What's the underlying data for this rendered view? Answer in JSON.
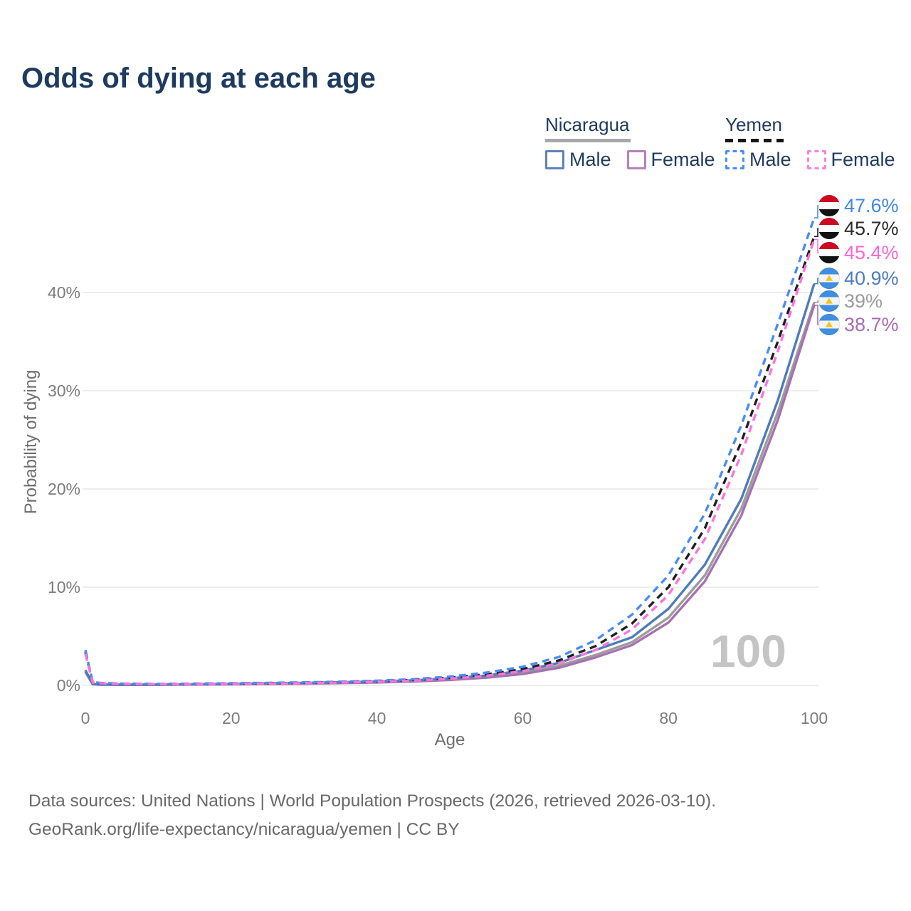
{
  "title": "Odds of dying at each age",
  "watermark": "100",
  "legend": {
    "nicaragua": {
      "name": "Nicaragua",
      "male_label": "Male",
      "female_label": "Female"
    },
    "yemen": {
      "name": "Yemen",
      "male_label": "Male",
      "female_label": "Female"
    }
  },
  "axes": {
    "x": {
      "label": "Age",
      "ticks": [
        {
          "v": 0,
          "label": "0"
        },
        {
          "v": 20,
          "label": "20"
        },
        {
          "v": 40,
          "label": "40"
        },
        {
          "v": 60,
          "label": "60"
        },
        {
          "v": 80,
          "label": "80"
        },
        {
          "v": 100,
          "label": "100"
        }
      ]
    },
    "y": {
      "label": "Probability of dying",
      "ticks": [
        {
          "v": 0,
          "label": "0%"
        },
        {
          "v": 10,
          "label": "10%"
        },
        {
          "v": 20,
          "label": "20%"
        },
        {
          "v": 30,
          "label": "30%"
        },
        {
          "v": 40,
          "label": "40%"
        }
      ]
    }
  },
  "source": {
    "line1": "Data sources: United Nations | World Population Prospects (2026, retrieved 2026-03-10).",
    "line2": "GeoRank.org/life-expectancy/nicaragua/yemen | CC BY"
  },
  "colors": {
    "title_navy": "#1d3a5f",
    "nicaragua_underline": "#a8a8a8",
    "yemen_underline": "#161616",
    "gridline": "#e7e7e7",
    "watermark_gray": "#c4c4c4"
  },
  "chart_data": {
    "type": "line",
    "title": "Odds of dying at each age",
    "xlabel": "Age",
    "ylabel": "Probability of dying",
    "xlim": [
      0,
      100
    ],
    "ylim_percent": [
      0,
      48
    ],
    "grid": "horizontal",
    "legend_position": "top-right",
    "x": [
      0,
      1,
      2,
      5,
      10,
      15,
      20,
      25,
      30,
      35,
      40,
      45,
      50,
      55,
      60,
      65,
      70,
      75,
      80,
      85,
      90,
      95,
      100
    ],
    "series": [
      {
        "id": "yemen-male",
        "name": "Yemen Male",
        "country": "Yemen",
        "sex": "Male",
        "style": "dashed",
        "color": "#4a8cf2",
        "end_label": "47.6%",
        "end_label_color": "#3e86f0",
        "flag": "yemen",
        "values": [
          3.6,
          0.35,
          0.25,
          0.18,
          0.15,
          0.18,
          0.22,
          0.26,
          0.31,
          0.38,
          0.48,
          0.63,
          0.9,
          1.3,
          1.9,
          2.9,
          4.6,
          7.2,
          11.2,
          17.5,
          26.5,
          36.8,
          47.6
        ]
      },
      {
        "id": "yemen-total",
        "name": "Yemen Both sexes",
        "country": "Yemen",
        "sex": "Both",
        "style": "dashed",
        "color": "#1f1f1f",
        "end_label": "45.7%",
        "end_label_color": "#2b2b2b",
        "flag": "yemen",
        "values": [
          3.4,
          0.32,
          0.23,
          0.16,
          0.13,
          0.15,
          0.18,
          0.22,
          0.27,
          0.33,
          0.42,
          0.55,
          0.78,
          1.12,
          1.65,
          2.55,
          4.0,
          6.3,
          10.0,
          16.0,
          24.8,
          35.0,
          45.7
        ]
      },
      {
        "id": "yemen-female",
        "name": "Yemen Female",
        "country": "Yemen",
        "sex": "Female",
        "style": "dashed",
        "color": "#fb74dc",
        "end_label": "45.4%",
        "end_label_color": "#f966d2",
        "flag": "yemen",
        "values": [
          3.2,
          0.3,
          0.21,
          0.15,
          0.12,
          0.13,
          0.15,
          0.18,
          0.23,
          0.29,
          0.37,
          0.48,
          0.68,
          0.98,
          1.45,
          2.25,
          3.6,
          5.7,
          9.2,
          14.9,
          23.5,
          34.0,
          45.4
        ]
      },
      {
        "id": "nicaragua-male",
        "name": "Nicaragua Male",
        "country": "Nicaragua",
        "sex": "Male",
        "style": "solid",
        "color": "#4e7cb8",
        "end_label": "40.9%",
        "end_label_color": "#4d7cbe",
        "flag": "nicaragua",
        "values": [
          1.55,
          0.14,
          0.09,
          0.07,
          0.08,
          0.12,
          0.17,
          0.21,
          0.26,
          0.32,
          0.4,
          0.52,
          0.72,
          1.0,
          1.5,
          2.3,
          3.6,
          4.9,
          7.8,
          12.3,
          19.0,
          29.0,
          40.9
        ]
      },
      {
        "id": "nicaragua-total",
        "name": "Nicaragua Both sexes",
        "country": "Nicaragua",
        "sex": "Both",
        "style": "solid",
        "color": "#9c9c9c",
        "end_label": "39%",
        "end_label_color": "#9b9b9b",
        "flag": "nicaragua",
        "values": [
          1.45,
          0.13,
          0.08,
          0.065,
          0.07,
          0.1,
          0.14,
          0.18,
          0.22,
          0.27,
          0.34,
          0.45,
          0.62,
          0.88,
          1.3,
          2.0,
          3.1,
          4.4,
          6.9,
          11.2,
          18.0,
          27.8,
          39.0
        ]
      },
      {
        "id": "nicaragua-female",
        "name": "Nicaragua Female",
        "country": "Nicaragua",
        "sex": "Female",
        "style": "solid",
        "color": "#a671b0",
        "end_label": "38.7%",
        "end_label_color": "#a96cb4",
        "flag": "nicaragua",
        "values": [
          1.35,
          0.12,
          0.075,
          0.06,
          0.065,
          0.085,
          0.11,
          0.14,
          0.18,
          0.23,
          0.3,
          0.4,
          0.55,
          0.78,
          1.15,
          1.8,
          2.85,
          4.1,
          6.4,
          10.6,
          17.3,
          27.0,
          38.7
        ]
      }
    ]
  }
}
